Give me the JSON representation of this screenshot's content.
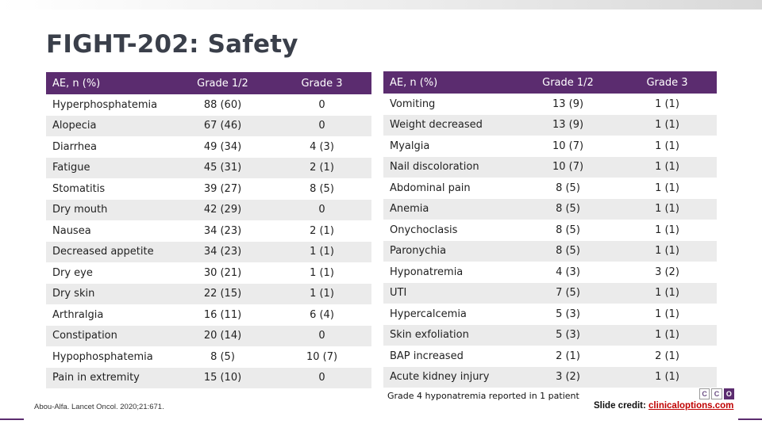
{
  "title": "FIGHT-202: Safety",
  "left_table": {
    "headers": [
      "AE, n (%)",
      "Grade 1/2",
      "Grade 3"
    ],
    "rows": [
      [
        "Hyperphosphatemia",
        "88 (60)",
        "0"
      ],
      [
        "Alopecia",
        "67 (46)",
        "0"
      ],
      [
        "Diarrhea",
        "49 (34)",
        "4 (3)"
      ],
      [
        "Fatigue",
        "45 (31)",
        "2 (1)"
      ],
      [
        "Stomatitis",
        "39 (27)",
        "8 (5)"
      ],
      [
        "Dry mouth",
        "42 (29)",
        "0"
      ],
      [
        "Nausea",
        "34 (23)",
        "2 (1)"
      ],
      [
        "Decreased appetite",
        "34 (23)",
        "1 (1)"
      ],
      [
        "Dry eye",
        "30 (21)",
        "1 (1)"
      ],
      [
        "Dry skin",
        "22 (15)",
        "1 (1)"
      ],
      [
        "Arthralgia",
        "16 (11)",
        "6 (4)"
      ],
      [
        "Constipation",
        "20 (14)",
        "0"
      ],
      [
        "Hypophosphatemia",
        "8 (5)",
        "10 (7)"
      ],
      [
        "Pain in extremity",
        "15 (10)",
        "0"
      ]
    ]
  },
  "right_table": {
    "headers": [
      "AE, n (%)",
      "Grade 1/2",
      "Grade 3"
    ],
    "rows": [
      [
        "Vomiting",
        "13 (9)",
        "1 (1)"
      ],
      [
        "Weight decreased",
        "13 (9)",
        "1 (1)"
      ],
      [
        "Myalgia",
        "10 (7)",
        "1 (1)"
      ],
      [
        "Nail discoloration",
        "10 (7)",
        "1 (1)"
      ],
      [
        "Abdominal pain",
        "8 (5)",
        "1 (1)"
      ],
      [
        "Anemia",
        "8 (5)",
        "1 (1)"
      ],
      [
        "Onychoclasis",
        "8 (5)",
        "1 (1)"
      ],
      [
        "Paronychia",
        "8 (5)",
        "1 (1)"
      ],
      [
        "Hyponatremia",
        "4 (3)",
        "3 (2)"
      ],
      [
        "UTI",
        "7 (5)",
        "1 (1)"
      ],
      [
        "Hypercalcemia",
        "5 (3)",
        "1 (1)"
      ],
      [
        "Skin exfoliation",
        "5 (3)",
        "1 (1)"
      ],
      [
        "BAP increased",
        "2 (1)",
        "2 (1)"
      ],
      [
        "Acute kidney injury",
        "3 (2)",
        "1 (1)"
      ]
    ]
  },
  "footnote": "Grade 4 hyponatremia reported in 1 patient",
  "citation": "Abou-Alfa. Lancet Oncol. 2020;21:671.",
  "credit": {
    "label": "Slide credit: ",
    "link": "clinicaloptions.com"
  },
  "logo_letters": [
    "C",
    "C",
    "O"
  ],
  "colors": {
    "header_bg": "#5b2c6f",
    "stripe": "#ebebeb",
    "title": "#3a3f4a",
    "link": "#c00000"
  }
}
